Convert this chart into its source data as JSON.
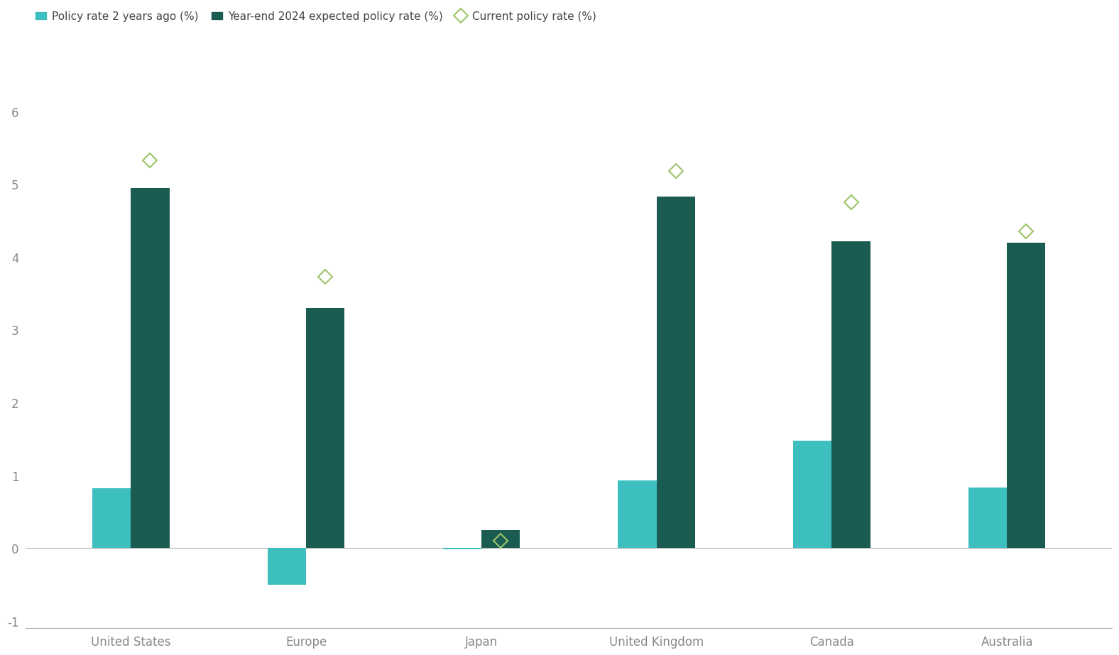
{
  "categories": [
    "United States",
    "Europe",
    "Japan",
    "United Kingdom",
    "Canada",
    "Australia"
  ],
  "policy_2years_ago": [
    0.82,
    -0.5,
    -0.02,
    0.93,
    1.48,
    0.83
  ],
  "year_end_2024_expected": [
    4.95,
    3.3,
    0.25,
    4.83,
    4.22,
    4.2
  ],
  "current_policy_rate": [
    5.33,
    3.73,
    0.1,
    5.18,
    4.75,
    4.35
  ],
  "bar_color_2years": "#3DBFBF",
  "bar_color_2024": "#1A5C52",
  "diamond_color": "#9DC46A",
  "background_color": "#FFFFFF",
  "ylim": [
    -1.1,
    6.2
  ],
  "yticks": [
    -1,
    0,
    1,
    2,
    3,
    4,
    5,
    6
  ],
  "legend_labels": [
    "Policy rate 2 years ago (%)",
    "Year-end 2024 expected policy rate (%)",
    "Current policy rate (%)"
  ],
  "bar_width": 0.22,
  "tick_fontsize": 12,
  "legend_fontsize": 11,
  "axis_color": "#AAAAAA",
  "tick_label_color": "#888888"
}
